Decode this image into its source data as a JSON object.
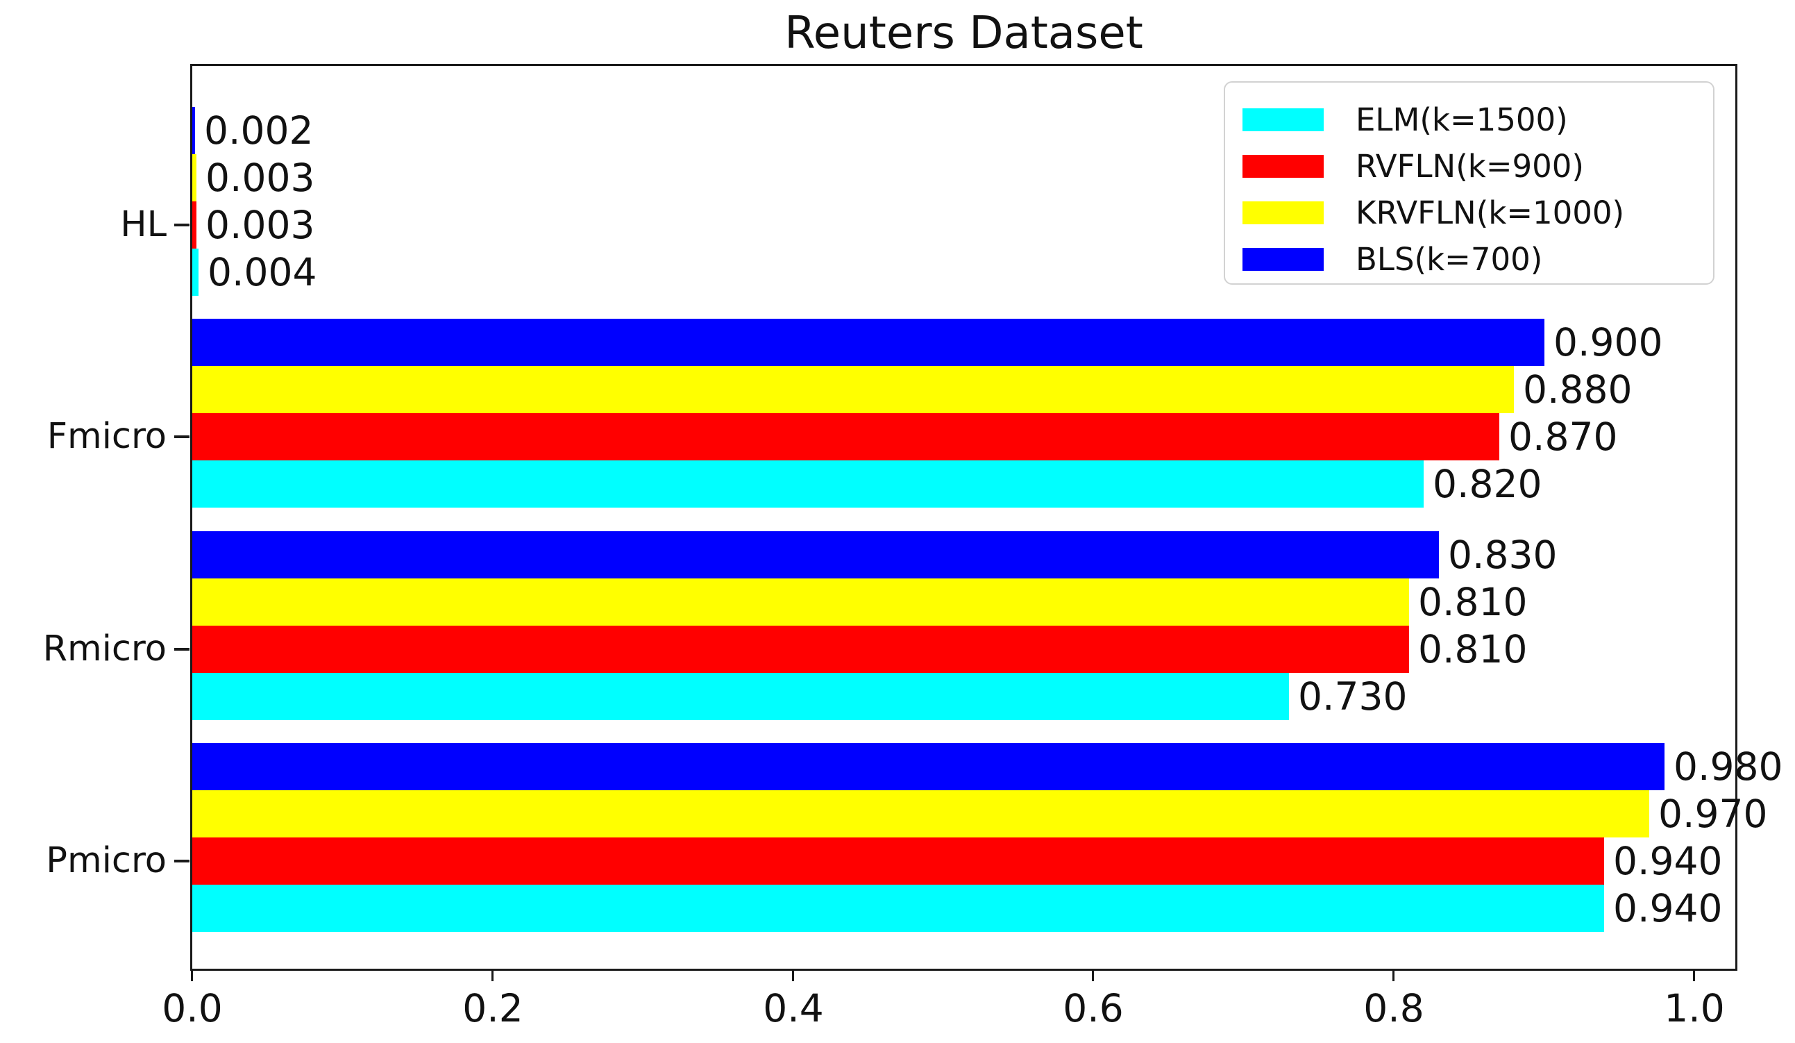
{
  "chart_data": {
    "type": "bar",
    "orientation": "horizontal",
    "title": "Reuters Dataset",
    "categories_top_to_bottom": [
      "HL",
      "Fmicro",
      "Rmicro",
      "Pmicro"
    ],
    "series": [
      {
        "name": "ELM(k=1500)",
        "color": "#00ffff",
        "values": [
          0.004,
          0.82,
          0.73,
          0.94
        ]
      },
      {
        "name": "RVFLN(k=900)",
        "color": "#ff0000",
        "values": [
          0.003,
          0.87,
          0.81,
          0.94
        ]
      },
      {
        "name": "KRVFLN(k=1000)",
        "color": "#ffff00",
        "values": [
          0.003,
          0.88,
          0.81,
          0.97
        ]
      },
      {
        "name": "BLS(k=700)",
        "color": "#0000ff",
        "values": [
          0.002,
          0.9,
          0.83,
          0.98
        ]
      }
    ],
    "group_row_order_top_to_bottom": [
      "BLS(k=700)",
      "KRVFLN(k=1000)",
      "RVFLN(k=900)",
      "ELM(k=1500)"
    ],
    "value_label_decimals": 3,
    "x_ticks": [
      0.0,
      0.2,
      0.4,
      0.6,
      0.8,
      1.0
    ],
    "x_tick_labels": [
      "0.0",
      "0.2",
      "0.4",
      "0.6",
      "0.8",
      "1.0"
    ],
    "xlim": [
      0.0,
      1.027
    ],
    "xlabel": "",
    "ylabel": "",
    "grid": false,
    "legend": {
      "position": "upper-right",
      "entries": [
        "ELM(k=1500)",
        "RVFLN(k=900)",
        "KRVFLN(k=1000)",
        "BLS(k=700)"
      ]
    }
  },
  "colors": {
    "background": "#ffffff",
    "text": "#111111",
    "spine": "#1a1a1a",
    "legend_border": "#d2d2d2"
  }
}
